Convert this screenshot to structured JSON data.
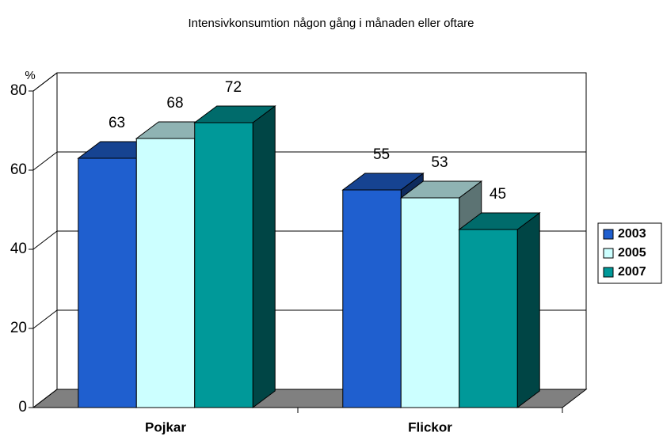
{
  "chart_data": {
    "type": "bar3d",
    "title": "Intensivkonsumtion någon gång i månaden eller oftare",
    "y_label": "%",
    "categories": [
      "Pojkar",
      "Flickor"
    ],
    "series": [
      {
        "name": "2003",
        "color": "#1f5fcf",
        "values": [
          63,
          55
        ]
      },
      {
        "name": "2005",
        "color": "#ccffff",
        "values": [
          68,
          53
        ]
      },
      {
        "name": "2007",
        "color": "#009999",
        "values": [
          72,
          45
        ]
      }
    ],
    "ylim": [
      0,
      80
    ],
    "yticks": [
      0,
      20,
      40,
      60,
      80
    ],
    "grid": true,
    "legend": "right"
  }
}
